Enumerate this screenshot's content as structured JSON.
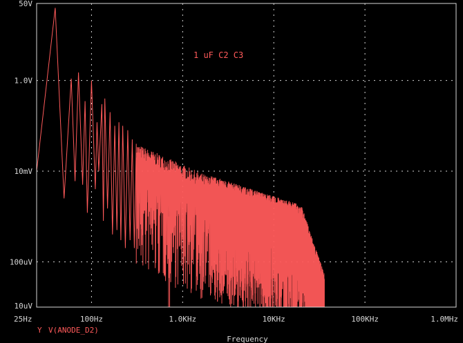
{
  "chart_data": {
    "type": "line",
    "xlabel": "Frequency",
    "x_scale": "log",
    "y_scale": "log",
    "xlim": [
      25,
      1000000
    ],
    "ylim": [
      1e-05,
      50
    ],
    "x_ticks": [
      {
        "value": 25,
        "label": "25Hz"
      },
      {
        "value": 100,
        "label": "100Hz"
      },
      {
        "value": 1000,
        "label": "1.0KHz"
      },
      {
        "value": 10000,
        "label": "10KHz"
      },
      {
        "value": 100000,
        "label": "100KHz"
      },
      {
        "value": 1000000,
        "label": "1.0MHz"
      }
    ],
    "y_ticks": [
      {
        "value": 50,
        "label": "50V"
      },
      {
        "value": 1,
        "label": "1.0V"
      },
      {
        "value": 0.01,
        "label": "10mV"
      },
      {
        "value": 0.0001,
        "label": "100uV"
      },
      {
        "value": 1e-05,
        "label": "10uV"
      }
    ],
    "annotation": "1 uF C2 C3",
    "legend": {
      "marker": "Y",
      "label": "V(ANODE_D2)"
    },
    "colors": {
      "trace": "#ff5a5a",
      "axis": "#d8d8d8",
      "background": "#000000"
    },
    "series": [
      {
        "values": [
          [
            25,
            0.01
          ],
          [
            40,
            40
          ],
          [
            50,
            0.0025
          ],
          [
            60,
            1.1
          ],
          [
            66,
            0.006
          ],
          [
            72,
            1.5
          ],
          [
            80,
            0.005
          ],
          [
            85,
            0.35
          ],
          [
            90,
            0.0012
          ],
          [
            100,
            1.0
          ],
          [
            110,
            0.004
          ],
          [
            115,
            0.12
          ],
          [
            120,
            0.01
          ],
          [
            130,
            0.3
          ],
          [
            135,
            0.0008
          ],
          [
            140,
            0.4
          ],
          [
            150,
            0.0015
          ],
          [
            160,
            0.2
          ],
          [
            170,
            0.0004
          ],
          [
            180,
            0.1
          ],
          [
            190,
            0.0005
          ],
          [
            200,
            0.12
          ],
          [
            210,
            0.0003
          ],
          [
            220,
            0.1
          ],
          [
            235,
            0.0002
          ],
          [
            250,
            0.08
          ],
          [
            265,
            0.0003
          ],
          [
            280,
            0.05
          ],
          [
            295,
            0.0002
          ],
          [
            310,
            0.04
          ]
        ]
      }
    ]
  }
}
